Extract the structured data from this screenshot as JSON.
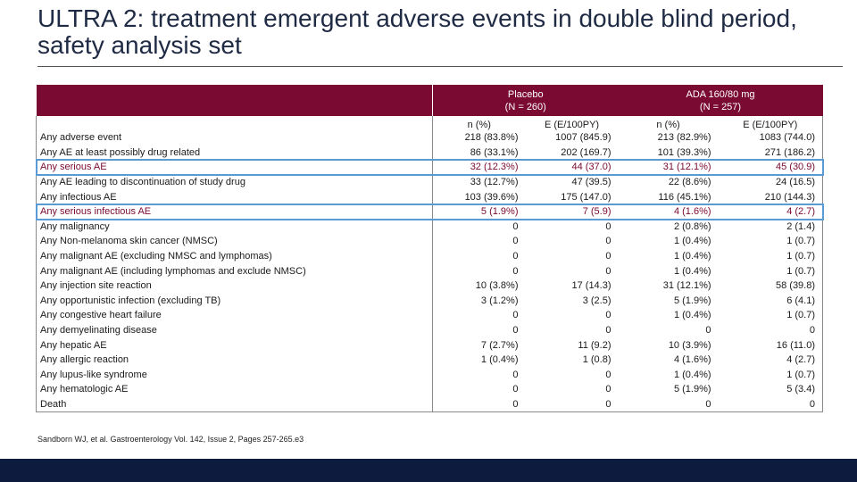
{
  "title": "ULTRA 2: treatment emergent adverse events in double blind period, safety analysis set",
  "groups": [
    {
      "name": "Placebo",
      "n": "(N = 260)"
    },
    {
      "name": "ADA 160/80 mg",
      "n": "(N = 257)"
    }
  ],
  "subheaders": [
    "n (%)",
    "E (E/100PY)",
    "n (%)",
    "E (E/100PY)"
  ],
  "rows": [
    {
      "label": "Any adverse event",
      "cells": [
        "218 (83.8%)",
        "1007 (845.9)",
        "213 (82.9%)",
        "1083 (744.0)"
      ]
    },
    {
      "label": "Any AE at least possibly drug related",
      "cells": [
        "86 (33.1%)",
        "202 (169.7)",
        "101 (39.3%)",
        "271 (186.2)"
      ]
    },
    {
      "label": "Any serious AE",
      "cells": [
        "32 (12.3%)",
        "44 (37.0)",
        "31 (12.1%)",
        "45 (30.9)"
      ]
    },
    {
      "label": "Any AE leading to discontinuation of study drug",
      "cells": [
        "33 (12.7%)",
        "47 (39.5)",
        "22 (8.6%)",
        "24 (16.5)"
      ]
    },
    {
      "label": "Any infectious AE",
      "cells": [
        "103 (39.6%)",
        "175 (147.0)",
        "116 (45.1%)",
        "210 (144.3)"
      ]
    },
    {
      "label": "Any serious infectious AE",
      "cells": [
        "5 (1.9%)",
        "7 (5.9)",
        "4 (1.6%)",
        "4 (2.7)"
      ]
    },
    {
      "label": "Any malignancy",
      "cells": [
        "0",
        "0",
        "2 (0.8%)",
        "2 (1.4)"
      ]
    },
    {
      "label": "Any Non-melanoma skin cancer (NMSC)",
      "cells": [
        "0",
        "0",
        "1 (0.4%)",
        "1 (0.7)"
      ]
    },
    {
      "label": "Any malignant AE (excluding NMSC and lymphomas)",
      "cells": [
        "0",
        "0",
        "1 (0.4%)",
        "1 (0.7)"
      ]
    },
    {
      "label": "Any malignant AE (including lymphomas and exclude NMSC)",
      "cells": [
        "0",
        "0",
        "1 (0.4%)",
        "1 (0.7)"
      ]
    },
    {
      "label": "Any injection site reaction",
      "cells": [
        "10 (3.8%)",
        "17 (14.3)",
        "31 (12.1%)",
        "58 (39.8)"
      ]
    },
    {
      "label": "Any opportunistic infection (excluding TB)",
      "cells": [
        "3 (1.2%)",
        "3 (2.5)",
        "5 (1.9%)",
        "6 (4.1)"
      ]
    },
    {
      "label": "Any congestive heart failure",
      "cells": [
        "0",
        "0",
        "1 (0.4%)",
        "1 (0.7)"
      ]
    },
    {
      "label": "Any demyelinating disease",
      "cells": [
        "0",
        "0",
        "0",
        "0"
      ]
    },
    {
      "label": "Any hepatic AE",
      "cells": [
        "7 (2.7%)",
        "11 (9.2)",
        "10 (3.9%)",
        "16 (11.0)"
      ]
    },
    {
      "label": "Any allergic reaction",
      "cells": [
        "1 (0.4%)",
        "1 (0.8)",
        "4 (1.6%)",
        "4 (2.7)"
      ]
    },
    {
      "label": "Any lupus-like syndrome",
      "cells": [
        "0",
        "0",
        "1 (0.4%)",
        "1 (0.7)"
      ]
    },
    {
      "label": "Any hematologic AE",
      "cells": [
        "0",
        "0",
        "5 (1.9%)",
        "5 (3.4)"
      ]
    },
    {
      "label": "Death",
      "cells": [
        "0",
        "0",
        "0",
        "0"
      ]
    }
  ],
  "reference": "Sandborn WJ, et al. Gastroenterology Vol. 142, Issue 2, Pages 257-265.e3",
  "colors": {
    "header_bg": "#7a0a32",
    "highlight_text": "#7a0a32",
    "highlight_box": "#5b9bd5",
    "footer_bar": "#0d1b3e"
  }
}
